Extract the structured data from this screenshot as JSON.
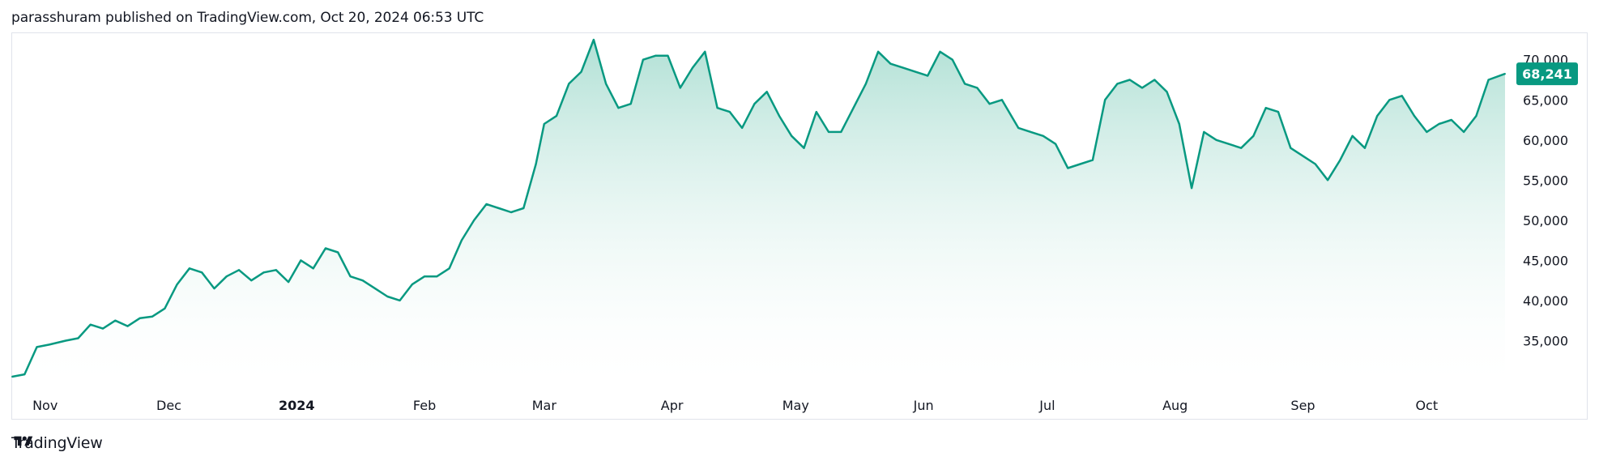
{
  "header": {
    "text": "parasshuram published on TradingView.com, Oct 20, 2024 06:53 UTC"
  },
  "footer": {
    "brand": "TradingView",
    "logo_icon": "tradingview-logo-icon"
  },
  "colors": {
    "line": "#089981",
    "area_top": "#8fd3c3",
    "area_bottom": "#ffffff",
    "price_label_bg": "#089981",
    "axis_text": "#131722",
    "border": "#e0e3eb"
  },
  "chart_data": {
    "type": "area",
    "title": "",
    "xlabel": "",
    "ylabel": "",
    "x_ticks": [
      "Nov",
      "Dec",
      "2024",
      "Feb",
      "Mar",
      "Apr",
      "May",
      "Jun",
      "Jul",
      "Aug",
      "Sep",
      "Oct"
    ],
    "y_ticks": [
      "70,000",
      "65,000",
      "60,000",
      "55,000",
      "50,000",
      "45,000",
      "40,000",
      "35,000"
    ],
    "ylim": [
      30000,
      73000
    ],
    "last_price": 68241,
    "last_price_label": "68,241",
    "grid": false,
    "series": [
      {
        "x": [
          "2023-10-24",
          "2023-10-27",
          "2023-10-30",
          "2023-11-02",
          "2023-11-06",
          "2023-11-09",
          "2023-11-12",
          "2023-11-15",
          "2023-11-18",
          "2023-11-21",
          "2023-11-24",
          "2023-11-27",
          "2023-11-30",
          "2023-12-03",
          "2023-12-06",
          "2023-12-09",
          "2023-12-12",
          "2023-12-15",
          "2023-12-18",
          "2023-12-21",
          "2023-12-24",
          "2023-12-27",
          "2023-12-30",
          "2024-01-02",
          "2024-01-05",
          "2024-01-08",
          "2024-01-11",
          "2024-01-14",
          "2024-01-17",
          "2024-01-20",
          "2024-01-23",
          "2024-01-26",
          "2024-01-29",
          "2024-02-01",
          "2024-02-04",
          "2024-02-07",
          "2024-02-10",
          "2024-02-13",
          "2024-02-16",
          "2024-02-19",
          "2024-02-22",
          "2024-02-25",
          "2024-02-28",
          "2024-03-01",
          "2024-03-04",
          "2024-03-07",
          "2024-03-10",
          "2024-03-13",
          "2024-03-16",
          "2024-03-19",
          "2024-03-22",
          "2024-03-25",
          "2024-03-28",
          "2024-03-31",
          "2024-04-03",
          "2024-04-06",
          "2024-04-09",
          "2024-04-12",
          "2024-04-15",
          "2024-04-18",
          "2024-04-21",
          "2024-04-24",
          "2024-04-27",
          "2024-04-30",
          "2024-05-03",
          "2024-05-06",
          "2024-05-09",
          "2024-05-12",
          "2024-05-15",
          "2024-05-18",
          "2024-05-21",
          "2024-05-24",
          "2024-05-27",
          "2024-05-30",
          "2024-06-02",
          "2024-06-05",
          "2024-06-08",
          "2024-06-11",
          "2024-06-14",
          "2024-06-17",
          "2024-06-20",
          "2024-06-24",
          "2024-06-27",
          "2024-06-30",
          "2024-07-03",
          "2024-07-06",
          "2024-07-09",
          "2024-07-12",
          "2024-07-15",
          "2024-07-18",
          "2024-07-21",
          "2024-07-24",
          "2024-07-27",
          "2024-07-30",
          "2024-08-02",
          "2024-08-05",
          "2024-08-08",
          "2024-08-11",
          "2024-08-14",
          "2024-08-17",
          "2024-08-20",
          "2024-08-23",
          "2024-08-26",
          "2024-08-29",
          "2024-09-01",
          "2024-09-04",
          "2024-09-07",
          "2024-09-10",
          "2024-09-13",
          "2024-09-16",
          "2024-09-19",
          "2024-09-22",
          "2024-09-25",
          "2024-09-28",
          "2024-10-01",
          "2024-10-04",
          "2024-10-07",
          "2024-10-10",
          "2024-10-13",
          "2024-10-16",
          "2024-10-20"
        ],
        "values": [
          30500,
          30800,
          34200,
          34500,
          35000,
          35300,
          37000,
          36500,
          37500,
          36800,
          37800,
          38000,
          39000,
          42000,
          44000,
          43500,
          41500,
          43000,
          43800,
          42500,
          43500,
          43800,
          42300,
          45000,
          44000,
          46500,
          46000,
          43000,
          42500,
          41500,
          40500,
          40000,
          42000,
          43000,
          43000,
          44000,
          47500,
          50000,
          52000,
          51500,
          51000,
          51500,
          57000,
          62000,
          63000,
          67000,
          68500,
          72500,
          67000,
          64000,
          64500,
          70000,
          70500,
          70500,
          66500,
          69000,
          71000,
          64000,
          63500,
          61500,
          64500,
          66000,
          63000,
          60500,
          59000,
          63500,
          61000,
          61000,
          64000,
          67000,
          71000,
          69500,
          69000,
          68500,
          68000,
          71000,
          70000,
          67000,
          66500,
          64500,
          65000,
          61500,
          61000,
          60500,
          59500,
          56500,
          57000,
          57500,
          65000,
          67000,
          67500,
          66500,
          67500,
          66000,
          62000,
          54000,
          61000,
          60000,
          59500,
          59000,
          60500,
          64000,
          63500,
          59000,
          58000,
          57000,
          55000,
          57500,
          60500,
          59000,
          63000,
          65000,
          65500,
          63000,
          61000,
          62000,
          62500,
          61000,
          63000,
          67500,
          68241
        ]
      }
    ]
  }
}
